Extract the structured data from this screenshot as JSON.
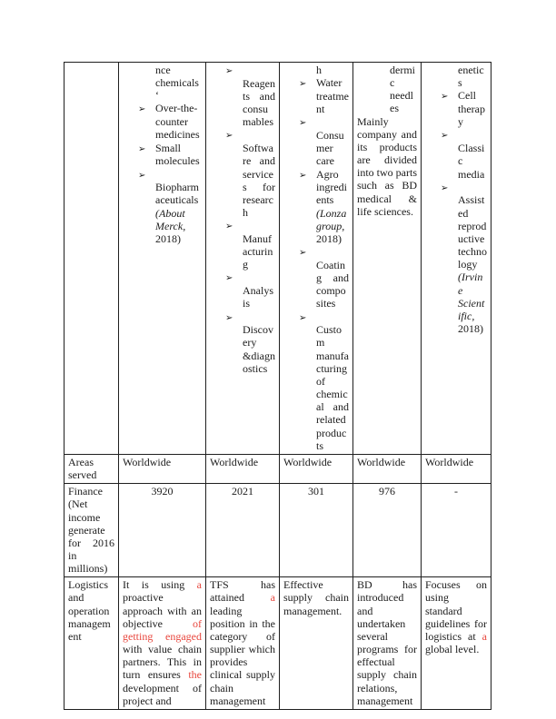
{
  "bullet_glyph": "➢",
  "colors": {
    "red_text": "#e8453c",
    "body_text": "#1b1b1b",
    "table_border": "#1f1f1f",
    "page_bg": "#ffffff"
  },
  "table": {
    "products_row": {
      "label": "",
      "cells": [
        {
          "continuation": "nce chemicals ‘",
          "items": [
            {
              "segments": [
                {
                  "t": "Over-the-counter medicines"
                }
              ]
            },
            {
              "segments": [
                {
                  "t": "Small molecules"
                }
              ]
            },
            {
              "segments": [
                {
                  "t": "Biopharmaceuticals "
                },
                {
                  "t": "(About Merck,",
                  "i": true
                },
                {
                  "t": " 2018)"
                }
              ]
            }
          ]
        },
        {
          "continuation": "",
          "items": [
            {
              "segments": [
                {
                  "t": "Reagents and consumables"
                }
              ]
            },
            {
              "segments": [
                {
                  "t": "Software and services for research"
                }
              ]
            },
            {
              "segments": [
                {
                  "t": "Manufacturing"
                }
              ]
            },
            {
              "segments": [
                {
                  "t": "Analysis"
                }
              ]
            },
            {
              "segments": [
                {
                  "t": "Discovery &diagnostics"
                }
              ]
            }
          ]
        },
        {
          "continuation": "h",
          "items": [
            {
              "segments": [
                {
                  "t": "Water treatment"
                }
              ]
            },
            {
              "segments": [
                {
                  "t": "Consumer care"
                }
              ]
            },
            {
              "segments": [
                {
                  "t": "Agro ingredients "
                },
                {
                  "t": "(Lonza group,",
                  "i": true
                },
                {
                  "t": " 2018)"
                }
              ]
            },
            {
              "segments": [
                {
                  "t": "Coating and composites"
                }
              ]
            },
            {
              "segments": [
                {
                  "t": "Custom manufacturing of chemical and related products"
                }
              ]
            }
          ]
        },
        {
          "continuation": "dermic needles",
          "paragraph": "Mainly company and its products are divided into two parts such as BD medical & life sciences."
        },
        {
          "continuation": "enetics",
          "items": [
            {
              "segments": [
                {
                  "t": "Cell therapy"
                }
              ]
            },
            {
              "segments": [
                {
                  "t": "Classic media"
                }
              ]
            },
            {
              "segments": [
                {
                  "t": "Assisted reproductive technology "
                },
                {
                  "t": "(Irvine Scientific,",
                  "i": true
                },
                {
                  "t": " 2018)"
                }
              ]
            }
          ]
        }
      ]
    },
    "areas_row": {
      "label": "Areas served",
      "values": [
        "Worldwide",
        "Worldwide",
        "Worldwide",
        "Worldwide",
        "Worldwide"
      ]
    },
    "finance_row": {
      "label": "Finance (Net income generate for 2016 in millions)",
      "values": [
        "3920",
        "2021",
        "301",
        "976",
        "-"
      ]
    },
    "logistics_row": {
      "label": "Logistics and operation management",
      "cells": [
        [
          {
            "t": "It is using "
          },
          {
            "t": "a",
            "red": true
          },
          {
            "t": " proactive approach with an objective "
          },
          {
            "t": "of getting engaged",
            "red": true
          },
          {
            "t": " with value chain partners. This in turn ensures "
          },
          {
            "t": "the",
            "red": true
          },
          {
            "t": " development of project and"
          }
        ],
        [
          {
            "t": "TFS has attained "
          },
          {
            "t": "a",
            "red": true
          },
          {
            "t": " leading position in the category of supplier which provides clinical supply chain management"
          }
        ],
        [
          {
            "t": "Effective supply chain management."
          }
        ],
        [
          {
            "t": "BD has introduced and undertaken several programs for effectual supply chain relations, management"
          }
        ],
        [
          {
            "t": "Focuses on using standard guidelines for logistics at "
          },
          {
            "t": "a",
            "red": true
          },
          {
            "t": " global level."
          }
        ]
      ]
    }
  }
}
